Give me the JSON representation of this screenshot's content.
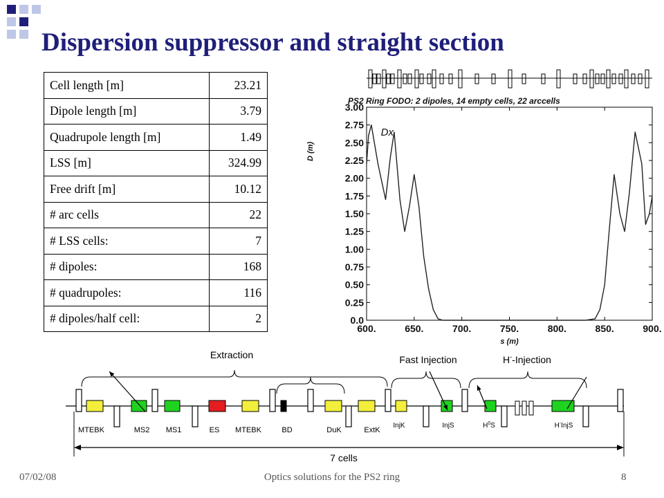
{
  "title": "Dispersion suppressor and straight section",
  "table": [
    {
      "label": "Cell length [m]",
      "value": "23.21"
    },
    {
      "label": "Dipole length [m]",
      "value": "3.79"
    },
    {
      "label": "Quadrupole length [m]",
      "value": "1.49"
    },
    {
      "label": "LSS [m]",
      "value": "324.99"
    },
    {
      "label": "Free drift [m]",
      "value": "10.12"
    },
    {
      "label": "# arc cells",
      "value": "22"
    },
    {
      "label": "# LSS cells:",
      "value": "7"
    },
    {
      "label": "# dipoles:",
      "value": "168"
    },
    {
      "label": "# quadrupoles:",
      "value": "116"
    },
    {
      "label": "# dipoles/half cell:",
      "value": "2"
    }
  ],
  "chart_data": {
    "type": "line",
    "title": "PS2 Ring FODO: 2 dipoles, 14 empty cells, 22 arccells",
    "xlabel": "s (m)",
    "ylabel": "D (m)",
    "series_label": "Dx",
    "xlim": [
      600,
      900
    ],
    "ylim": [
      0,
      3.0
    ],
    "xticks": [
      "600.",
      "650.",
      "700.",
      "750.",
      "800.",
      "850.",
      "900."
    ],
    "yticks": [
      "0.0",
      "0.25",
      "0.50",
      "0.75",
      "1.00",
      "1.25",
      "1.50",
      "1.75",
      "2.00",
      "2.25",
      "2.50",
      "2.75",
      "3.00"
    ],
    "series": [
      {
        "x": [
          600,
          602,
          605,
          612,
          620,
          625,
          629,
          635,
          640,
          645,
          650,
          655,
          660,
          665,
          670,
          675,
          680,
          690,
          820,
          830,
          840,
          845,
          850,
          855,
          860,
          866,
          871,
          876,
          882,
          889,
          893,
          897,
          900
        ],
        "y": [
          2.2,
          2.6,
          2.75,
          2.2,
          1.7,
          2.3,
          2.65,
          1.7,
          1.25,
          1.6,
          2.05,
          1.6,
          0.9,
          0.45,
          0.15,
          0.02,
          0.0,
          0.0,
          0.0,
          0.0,
          0.02,
          0.15,
          0.5,
          1.3,
          2.05,
          1.5,
          1.25,
          1.8,
          2.65,
          2.2,
          1.35,
          1.5,
          1.75
        ]
      }
    ]
  },
  "lattice": {
    "extraction_label": "Extraction",
    "fast_injection_label": "Fast Injection",
    "h_injection_label_main": "H",
    "h_injection_label_sup": "-",
    "h_injection_label_rest": "-Injection",
    "cells_label": "7 cells",
    "elements": [
      {
        "label": "MTEBK",
        "color": "#F2EE3C"
      },
      {
        "label": "MS2",
        "color": "#1FD21F"
      },
      {
        "label": "MS1",
        "color": "#1FD21F"
      },
      {
        "label": "ES",
        "color": "#E41E1E"
      },
      {
        "label": "MTEBK",
        "color": "#F2EE3C"
      },
      {
        "label": "BD",
        "color": "#000000"
      },
      {
        "label": "DuK",
        "color": "#F2EE3C"
      },
      {
        "label": "ExtK",
        "color": "#F2EE3C"
      },
      {
        "label": "InjK",
        "color": "#F2EE3C"
      },
      {
        "label": "InjS",
        "color": "#1FD21F"
      },
      {
        "label_main": "H",
        "label_sup": "0",
        "label_rest": "S",
        "color": "#1FD21F"
      },
      {
        "label_main": "H",
        "label_sup": "-",
        "label_rest": "InjS",
        "color": "#1FD21F"
      }
    ]
  },
  "footer": {
    "date": "07/02/08",
    "center": "Optics solutions for the PS2 ring",
    "page": "8"
  }
}
